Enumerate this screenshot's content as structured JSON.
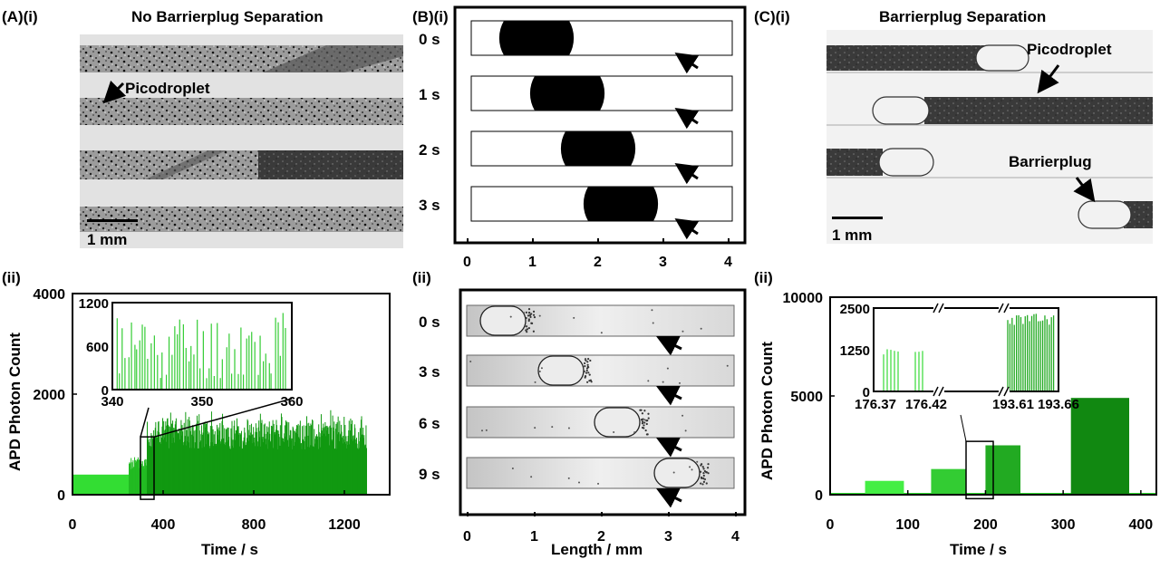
{
  "panels": {
    "A_i": {
      "label": "(A)(i)",
      "title": "No Barrierplug Separation",
      "annotation": "Picodroplet",
      "scale_bar": "1 mm"
    },
    "B_i": {
      "label": "(B)(i)",
      "rows": [
        "0 s",
        "1 s",
        "2 s",
        "3 s"
      ],
      "x_ticks": [
        "0",
        "1",
        "2",
        "3",
        "4"
      ]
    },
    "C_i": {
      "label": "(C)(i)",
      "title": "Barrierplug Separation",
      "annotation_1": "Picodroplet",
      "annotation_2": "Barrierplug",
      "scale_bar": "1 mm"
    },
    "A_ii": {
      "label": "(ii)",
      "ylabel": "APD Photon Count",
      "xlabel": "Time / s"
    },
    "B_ii": {
      "label": "(ii)",
      "rows": [
        "0 s",
        "3 s",
        "6 s",
        "9 s"
      ],
      "x_ticks": [
        "0",
        "1",
        "2",
        "3",
        "4"
      ],
      "xlabel": "Length / mm"
    },
    "C_ii": {
      "label": "(ii)",
      "ylabel": "APD Photon Count",
      "xlabel": "Time / s"
    }
  },
  "chart_data": [
    {
      "type": "bar",
      "id": "A_ii_main",
      "xlabel": "Time / s",
      "ylabel": "APD Photon Count",
      "xlim": [
        0,
        1400
      ],
      "ylim": [
        0,
        4000
      ],
      "x_ticks": [
        "0",
        "400",
        "800",
        "1200"
      ],
      "y_ticks": [
        "0",
        "2000",
        "4000"
      ],
      "series": [
        {
          "segments": [
            {
              "start": 0,
              "end": 250,
              "baseline": 400,
              "peak": 400,
              "color": "#33dd33"
            },
            {
              "start": 250,
              "end": 330,
              "baseline": 500,
              "peak": 800,
              "color": "#22bb22"
            },
            {
              "start": 330,
              "end": 1300,
              "baseline": 900,
              "peak": 1700,
              "color": "#119911"
            }
          ]
        }
      ],
      "inset": {
        "xlim": [
          340,
          360
        ],
        "ylim": [
          0,
          1200
        ],
        "x_ticks": [
          "340",
          "350",
          "360"
        ],
        "y_ticks": [
          "0",
          "600",
          "1200"
        ]
      }
    },
    {
      "type": "bar",
      "id": "C_ii_main",
      "xlabel": "Time / s",
      "ylabel": "APD Photon Count",
      "xlim": [
        0,
        420
      ],
      "ylim": [
        0,
        10000
      ],
      "x_ticks": [
        "0",
        "100",
        "200",
        "300",
        "400"
      ],
      "y_ticks": [
        "0",
        "5000",
        "10000"
      ],
      "series": [
        {
          "segments": [
            {
              "start": 45,
              "end": 95,
              "peak": 700,
              "color": "#44ee44"
            },
            {
              "start": 130,
              "end": 175,
              "peak": 1300,
              "color": "#33cc33"
            },
            {
              "start": 200,
              "end": 245,
              "peak": 2500,
              "color": "#22aa22"
            },
            {
              "start": 310,
              "end": 385,
              "peak": 4900,
              "color": "#118811"
            }
          ]
        }
      ],
      "inset": {
        "y_ticks": [
          "0",
          "1250",
          "2500"
        ],
        "x_ticks": [
          "176.37",
          "176.42",
          "193.61",
          "193.66"
        ]
      }
    }
  ]
}
